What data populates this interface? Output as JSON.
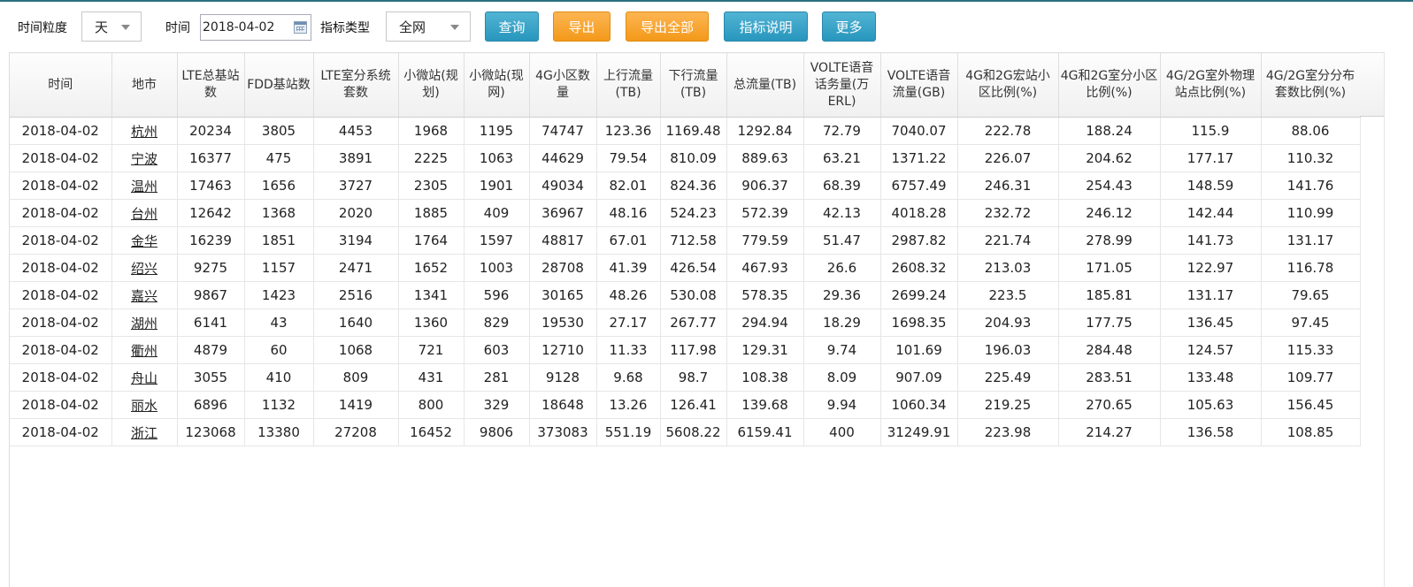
{
  "toolbar": {
    "granularity_label": "时间粒度",
    "granularity_value": "天",
    "time_label": "时间",
    "date_value": "2018-04-02",
    "indicator_type_label": "指标类型",
    "indicator_type_value": "全网",
    "query_button": "查询",
    "export_button": "导出",
    "export_all_button": "导出全部",
    "indicator_desc_button": "指标说明",
    "more_button": "更多"
  },
  "table": {
    "columns": [
      "时间",
      "地市",
      "LTE总基站数",
      "FDD基站数",
      "LTE室分系统套数",
      "小微站(规划)",
      "小微站(现网)",
      "4G小区数量",
      "上行流量(TB)",
      "下行流量(TB)",
      "总流量(TB)",
      "VOLTE语音话务量(万ERL)",
      "VOLTE语音流量(GB)",
      "4G和2G宏站小区比例(%)",
      "4G和2G室分小区比例(%)",
      "4G/2G室外物理站点比例(%)",
      "4G/2G室分分布套数比例(%)"
    ],
    "rows": [
      [
        "2018-04-02",
        "杭州",
        "20234",
        "3805",
        "4453",
        "1968",
        "1195",
        "74747",
        "123.36",
        "1169.48",
        "1292.84",
        "72.79",
        "7040.07",
        "222.78",
        "188.24",
        "115.9",
        "88.06"
      ],
      [
        "2018-04-02",
        "宁波",
        "16377",
        "475",
        "3891",
        "2225",
        "1063",
        "44629",
        "79.54",
        "810.09",
        "889.63",
        "63.21",
        "1371.22",
        "226.07",
        "204.62",
        "177.17",
        "110.32"
      ],
      [
        "2018-04-02",
        "温州",
        "17463",
        "1656",
        "3727",
        "2305",
        "1901",
        "49034",
        "82.01",
        "824.36",
        "906.37",
        "68.39",
        "6757.49",
        "246.31",
        "254.43",
        "148.59",
        "141.76"
      ],
      [
        "2018-04-02",
        "台州",
        "12642",
        "1368",
        "2020",
        "1885",
        "409",
        "36967",
        "48.16",
        "524.23",
        "572.39",
        "42.13",
        "4018.28",
        "232.72",
        "246.12",
        "142.44",
        "110.99"
      ],
      [
        "2018-04-02",
        "金华",
        "16239",
        "1851",
        "3194",
        "1764",
        "1597",
        "48817",
        "67.01",
        "712.58",
        "779.59",
        "51.47",
        "2987.82",
        "221.74",
        "278.99",
        "141.73",
        "131.17"
      ],
      [
        "2018-04-02",
        "绍兴",
        "9275",
        "1157",
        "2471",
        "1652",
        "1003",
        "28708",
        "41.39",
        "426.54",
        "467.93",
        "26.6",
        "2608.32",
        "213.03",
        "171.05",
        "122.97",
        "116.78"
      ],
      [
        "2018-04-02",
        "嘉兴",
        "9867",
        "1423",
        "2516",
        "1341",
        "596",
        "30165",
        "48.26",
        "530.08",
        "578.35",
        "29.36",
        "2699.24",
        "223.5",
        "185.81",
        "131.17",
        "79.65"
      ],
      [
        "2018-04-02",
        "湖州",
        "6141",
        "43",
        "1640",
        "1360",
        "829",
        "19530",
        "27.17",
        "267.77",
        "294.94",
        "18.29",
        "1698.35",
        "204.93",
        "177.75",
        "136.45",
        "97.45"
      ],
      [
        "2018-04-02",
        "衢州",
        "4879",
        "60",
        "1068",
        "721",
        "603",
        "12710",
        "11.33",
        "117.98",
        "129.31",
        "9.74",
        "101.69",
        "196.03",
        "284.48",
        "124.57",
        "115.33"
      ],
      [
        "2018-04-02",
        "舟山",
        "3055",
        "410",
        "809",
        "431",
        "281",
        "9128",
        "9.68",
        "98.7",
        "108.38",
        "8.09",
        "907.09",
        "225.49",
        "283.51",
        "133.48",
        "109.77"
      ],
      [
        "2018-04-02",
        "丽水",
        "6896",
        "1132",
        "1419",
        "800",
        "329",
        "18648",
        "13.26",
        "126.41",
        "139.68",
        "9.94",
        "1060.34",
        "219.25",
        "270.65",
        "105.63",
        "156.45"
      ],
      [
        "2018-04-02",
        "浙江",
        "123068",
        "13380",
        "27208",
        "16452",
        "9806",
        "373083",
        "551.19",
        "5608.22",
        "6159.41",
        "400",
        "31249.91",
        "223.98",
        "214.27",
        "136.58",
        "108.85"
      ]
    ]
  }
}
